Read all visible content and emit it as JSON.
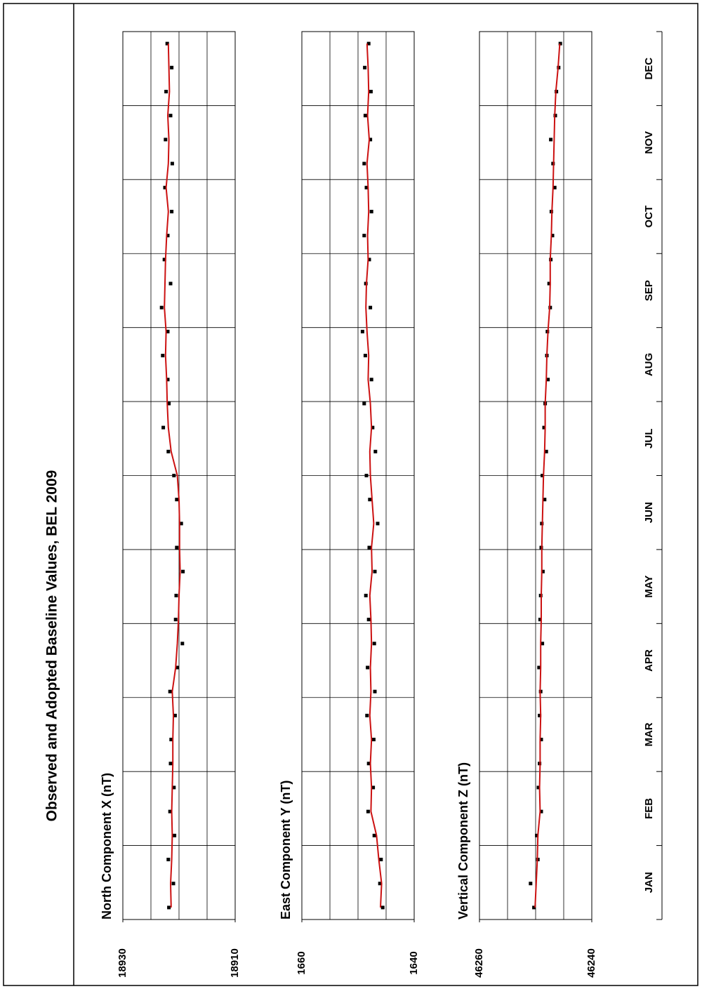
{
  "title": "Observed and Adopted Baseline Values, BEL 2009",
  "chart_data": [
    {
      "type": "scatter_line",
      "title": "North Component X (nT)",
      "ylim": [
        18910,
        18930
      ],
      "yticks": [
        18930,
        18910
      ],
      "series": [
        {
          "color": "#000000",
          "values": [
            18921.8,
            18921.0,
            18921.9,
            18920.8,
            18921.6,
            18920.9,
            18921.5,
            18921.4,
            18920.7,
            18921.6,
            18920.3,
            18919.4,
            18920.6,
            18920.5,
            18919.3,
            18920.4,
            18919.6,
            18920.4,
            18920.9,
            18921.9,
            18922.8,
            18921.8,
            18922.0,
            18922.9,
            18922.0,
            18923.1,
            18921.5,
            18922.6,
            18922.0,
            18921.3,
            18922.5,
            18921.2,
            18922.4,
            18921.5,
            18922.3,
            18921.3,
            18922.1
          ]
        },
        {
          "color": "#cc1111",
          "values": [
            18921.4,
            18921.5,
            18921.3,
            18921.2,
            18921.3,
            18921.2,
            18921.1,
            18921.1,
            18921.0,
            18921.2,
            18920.6,
            18920.3,
            18920.1,
            18920.0,
            18919.8,
            18919.9,
            18919.9,
            18920.0,
            18920.3,
            18921.4,
            18921.9,
            18922.1,
            18922.2,
            18922.4,
            18922.3,
            18922.6,
            18922.5,
            18922.4,
            18922.2,
            18921.9,
            18922.3,
            18921.9,
            18921.8,
            18922.0,
            18921.7,
            18921.8,
            18921.9
          ]
        }
      ]
    },
    {
      "type": "scatter_line",
      "title": "East Component Y (nT)",
      "ylim": [
        1640,
        1660
      ],
      "yticks": [
        1660,
        1640
      ],
      "series": [
        {
          "color": "#000000",
          "values": [
            1645.6,
            1646.1,
            1645.9,
            1647.1,
            1648.2,
            1647.3,
            1648.1,
            1647.2,
            1648.4,
            1647.0,
            1648.3,
            1647.1,
            1648.1,
            1648.6,
            1647.0,
            1648.0,
            1646.5,
            1647.9,
            1648.5,
            1646.9,
            1647.4,
            1648.9,
            1647.6,
            1648.7,
            1649.2,
            1647.8,
            1648.6,
            1648.0,
            1648.9,
            1647.6,
            1648.5,
            1648.9,
            1647.8,
            1648.7,
            1647.7,
            1648.8,
            1648.1
          ]
        },
        {
          "color": "#cc1111",
          "values": [
            1646.0,
            1645.8,
            1646.3,
            1646.7,
            1647.7,
            1647.6,
            1647.8,
            1647.6,
            1647.9,
            1647.7,
            1647.8,
            1647.6,
            1647.7,
            1647.9,
            1647.5,
            1647.6,
            1647.2,
            1647.5,
            1647.8,
            1647.9,
            1647.6,
            1647.8,
            1648.2,
            1648.1,
            1648.4,
            1648.6,
            1648.5,
            1648.2,
            1648.3,
            1648.1,
            1648.2,
            1648.4,
            1648.0,
            1648.3,
            1648.1,
            1648.2,
            1648.4
          ]
        }
      ]
    },
    {
      "type": "scatter_line",
      "title": "Vertical Component Z (nT)",
      "ylim": [
        46240,
        46260
      ],
      "yticks": [
        46260,
        46240
      ],
      "categories": [
        "JAN",
        "FEB",
        "MAR",
        "APR",
        "MAY",
        "JUN",
        "JUL",
        "AUG",
        "SEP",
        "OCT",
        "NOV",
        "DEC"
      ],
      "series": [
        {
          "color": "#000000",
          "values": [
            46250.3,
            46250.9,
            46249.6,
            46249.8,
            46249.0,
            46249.5,
            46249.3,
            46249.0,
            46249.3,
            46249.1,
            46249.4,
            46248.8,
            46249.2,
            46249.1,
            46248.7,
            46249.0,
            46248.9,
            46248.4,
            46248.8,
            46248.1,
            46248.5,
            46248.3,
            46247.8,
            46248.0,
            46247.9,
            46247.4,
            46247.6,
            46247.3,
            46247.0,
            46247.2,
            46246.6,
            46246.9,
            46247.3,
            46246.5,
            46246.3,
            46245.9,
            46245.6
          ]
        },
        {
          "color": "#cc1111",
          "values": [
            46250.1,
            46249.9,
            46249.7,
            46249.6,
            46249.2,
            46249.3,
            46249.2,
            46249.2,
            46249.1,
            46249.2,
            46249.1,
            46249.1,
            46249.0,
            46249.0,
            46248.9,
            46248.9,
            46248.8,
            46248.7,
            46248.6,
            46248.4,
            46248.3,
            46248.3,
            46248.1,
            46248.0,
            46247.8,
            46247.5,
            46247.4,
            46247.4,
            46247.2,
            46247.1,
            46246.9,
            46246.8,
            46246.7,
            46246.6,
            46246.4,
            46246.0,
            46245.7
          ]
        }
      ]
    }
  ]
}
